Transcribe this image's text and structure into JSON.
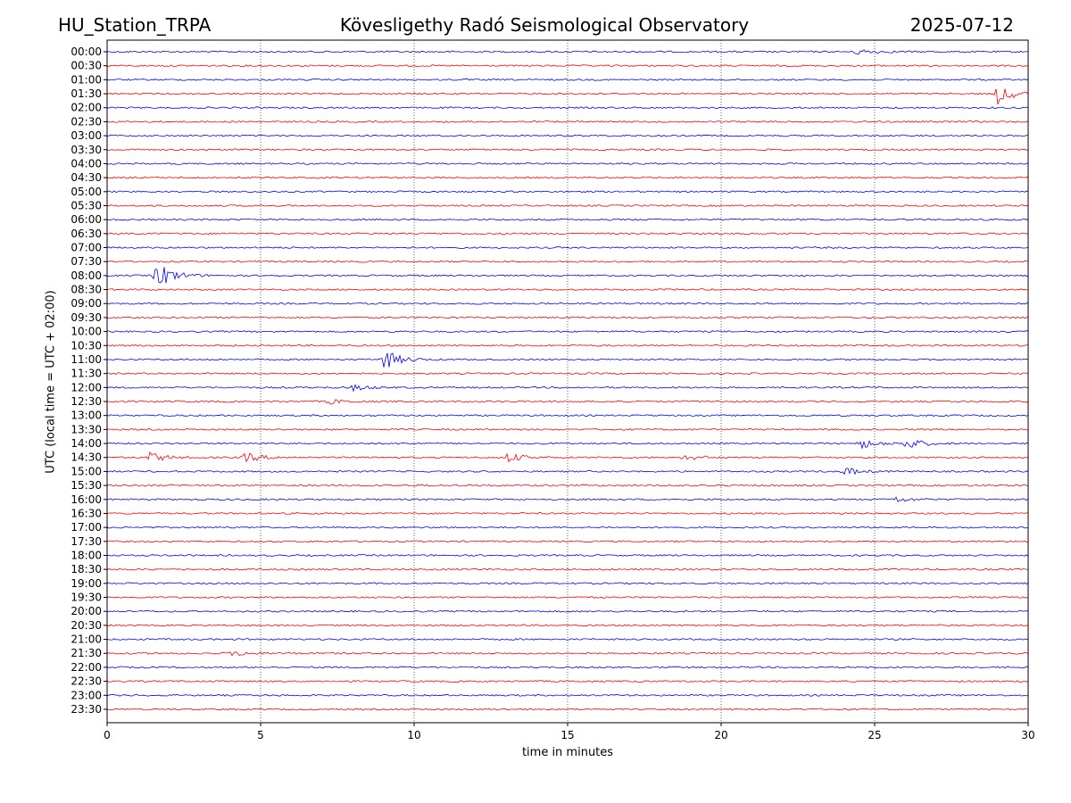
{
  "header": {
    "station": "HU_Station_TRPA",
    "observatory": "Kövesligethy Radó Seismological Observatory",
    "date": "2025-07-12"
  },
  "chart_data": {
    "type": "line",
    "title": "Kövesligethy Radó Seismological Observatory",
    "xlabel": "time in minutes",
    "ylabel": "UTC (local time = UTC + 02:00)",
    "xlim": [
      0,
      30
    ],
    "xticks": [
      0,
      5,
      10,
      15,
      20,
      25,
      30
    ],
    "grid": "vertical dotted at x ticks",
    "colors": [
      "#0000ff",
      "#ff0000"
    ],
    "rows": [
      "00:00",
      "00:30",
      "01:00",
      "01:30",
      "02:00",
      "02:30",
      "03:00",
      "03:30",
      "04:00",
      "04:30",
      "05:00",
      "05:30",
      "06:00",
      "06:30",
      "07:00",
      "07:30",
      "08:00",
      "08:30",
      "09:00",
      "09:30",
      "10:00",
      "10:30",
      "11:00",
      "11:30",
      "12:00",
      "12:30",
      "13:00",
      "13:30",
      "14:00",
      "14:30",
      "15:00",
      "15:30",
      "16:00",
      "16:30",
      "17:00",
      "17:30",
      "18:00",
      "18:30",
      "19:00",
      "19:30",
      "20:00",
      "20:30",
      "21:00",
      "21:30",
      "22:00",
      "22:30",
      "23:00",
      "23:30"
    ],
    "events": [
      {
        "row": "00:00",
        "t": 24.4,
        "amp": 0.3
      },
      {
        "row": "01:30",
        "t": 29.0,
        "amp": 1.0
      },
      {
        "row": "08:00",
        "t": 1.6,
        "amp": 1.4
      },
      {
        "row": "11:00",
        "t": 9.0,
        "amp": 1.0
      },
      {
        "row": "12:00",
        "t": 8.0,
        "amp": 0.3
      },
      {
        "row": "12:30",
        "t": 7.2,
        "amp": 0.25
      },
      {
        "row": "14:00",
        "t": 24.5,
        "amp": 0.5
      },
      {
        "row": "14:00",
        "t": 26.0,
        "amp": 0.6
      },
      {
        "row": "14:30",
        "t": 1.4,
        "amp": 0.5
      },
      {
        "row": "14:30",
        "t": 4.5,
        "amp": 0.5
      },
      {
        "row": "14:30",
        "t": 13.0,
        "amp": 0.5
      },
      {
        "row": "14:30",
        "t": 18.8,
        "amp": 0.3
      },
      {
        "row": "15:00",
        "t": 24.0,
        "amp": 0.4
      },
      {
        "row": "16:00",
        "t": 25.6,
        "amp": 0.3
      },
      {
        "row": "21:30",
        "t": 4.1,
        "amp": 0.3
      }
    ]
  }
}
